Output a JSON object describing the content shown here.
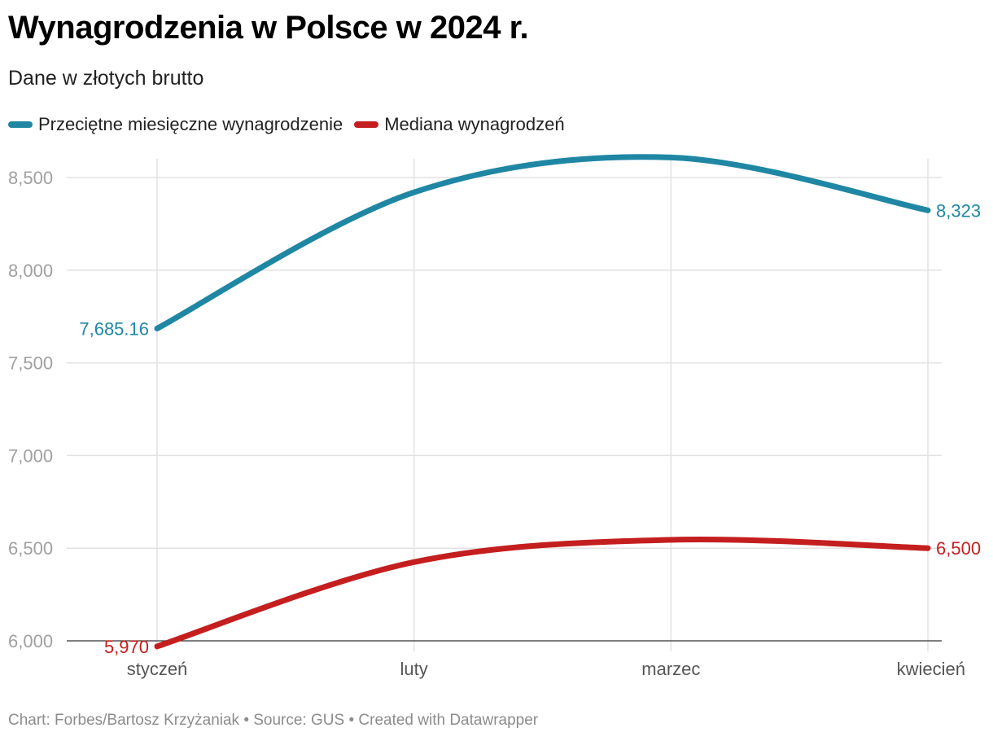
{
  "title": "Wynagrodzenia w Polsce w 2024 r.",
  "subtitle": "Dane w złotych brutto",
  "footer": "Chart: Forbes/Bartosz Krzyżaniak • Source: GUS • Created with Datawrapper",
  "chart_data": {
    "type": "line",
    "categories": [
      "styczeń",
      "luty",
      "marzec",
      "kwiecień"
    ],
    "ylim": [
      6000,
      8650
    ],
    "yticks": [
      6000,
      6500,
      7000,
      7500,
      8000,
      8500
    ],
    "ytick_labels": [
      "6,000",
      "6,500",
      "7,000",
      "7,500",
      "8,000",
      "8,500"
    ],
    "grid": true,
    "legend_position": "top-left",
    "series": [
      {
        "name": "Przeciętne miesięczne wynagrodzenie",
        "color": "#1f87a4",
        "values": [
          7685.16,
          8420,
          8608,
          8323
        ],
        "start_label": "7,685.16",
        "end_label": "8,323"
      },
      {
        "name": "Mediana wynagrodzeń",
        "color": "#c41e1e",
        "values": [
          5970,
          6425,
          6545,
          6500
        ],
        "start_label": "5,970",
        "end_label": "6,500"
      }
    ]
  }
}
